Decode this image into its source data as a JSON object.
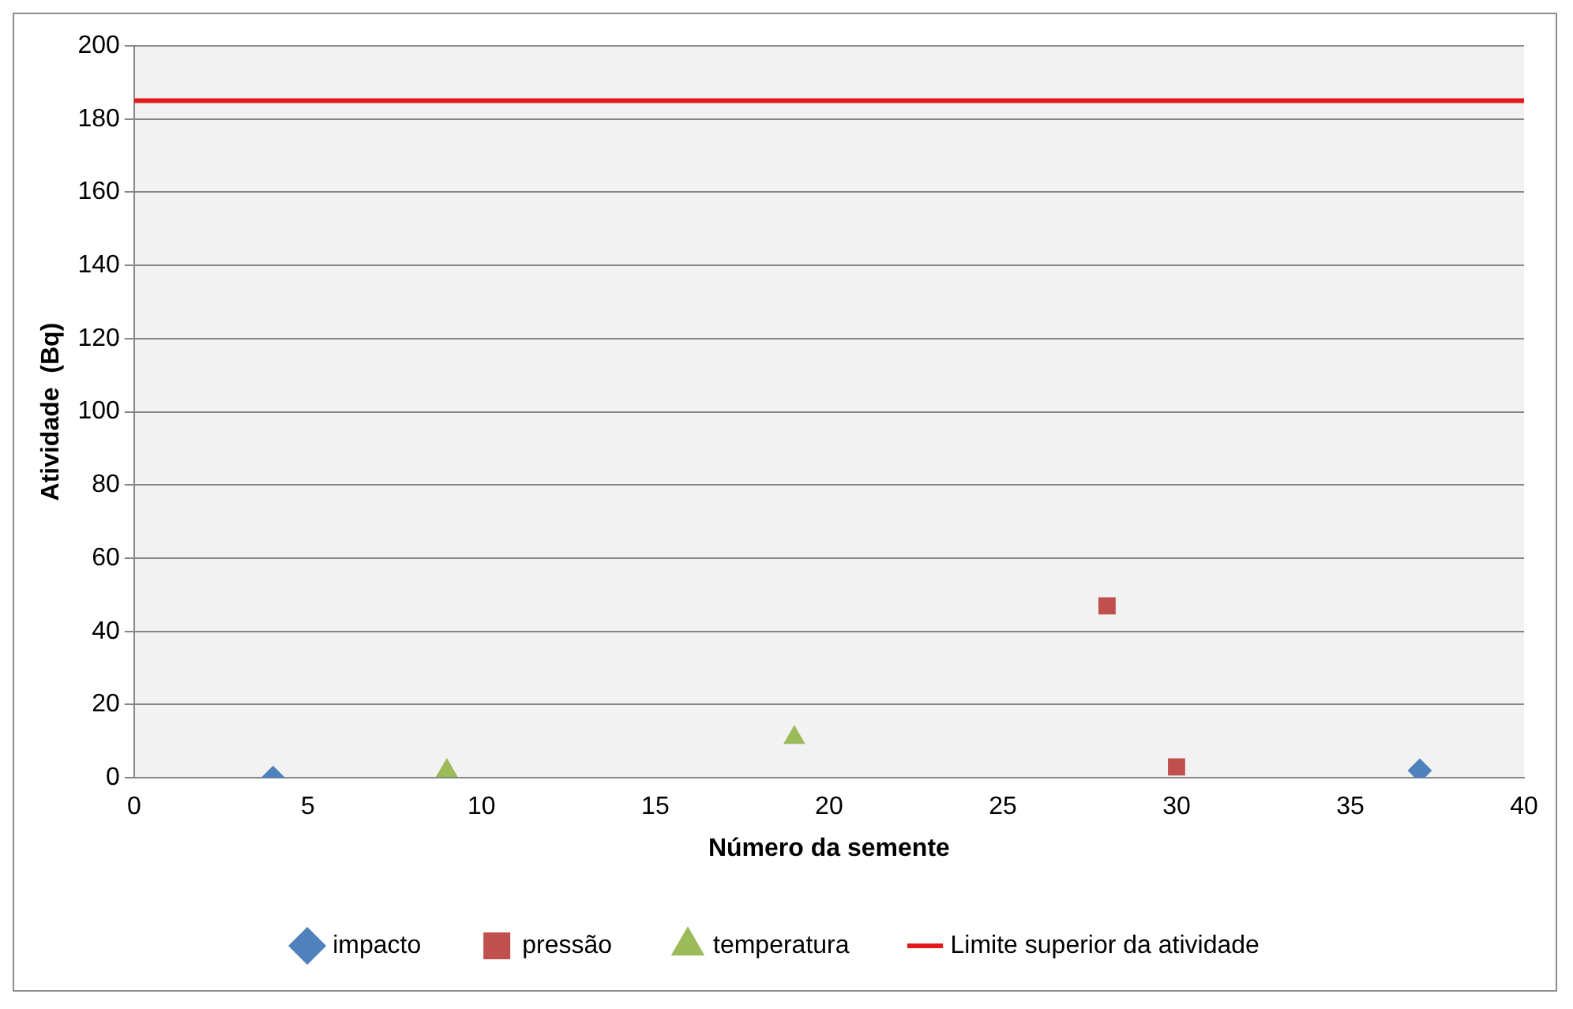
{
  "chart_data": {
    "type": "scatter",
    "xlabel": "Número da semente",
    "ylabel": "Atividade  (Bq)",
    "xlim": [
      0,
      40
    ],
    "xticks": [
      0,
      5,
      10,
      15,
      20,
      25,
      30,
      35,
      40
    ],
    "ylim": [
      0,
      200
    ],
    "yticks": [
      0,
      20,
      40,
      60,
      80,
      100,
      120,
      140,
      160,
      180,
      200
    ],
    "grid": "y",
    "legend": "bottom",
    "series": [
      {
        "name": "impacto",
        "color": "#4f81bd",
        "marker": "diamond",
        "x": [
          4,
          37
        ],
        "values": [
          0,
          2
        ]
      },
      {
        "name": "pressão",
        "color": "#c0504d",
        "marker": "square",
        "x": [
          28,
          30
        ],
        "values": [
          47,
          3
        ]
      },
      {
        "name": "temperatura",
        "color": "#9bbb59",
        "marker": "triangle",
        "x": [
          9,
          19
        ],
        "values": [
          2,
          11
        ]
      },
      {
        "name": "Limite superior da atividade",
        "type": "line",
        "color": "#e31a1c",
        "marker": "none",
        "x": [
          0,
          40
        ],
        "values": [
          185,
          185
        ]
      }
    ]
  }
}
